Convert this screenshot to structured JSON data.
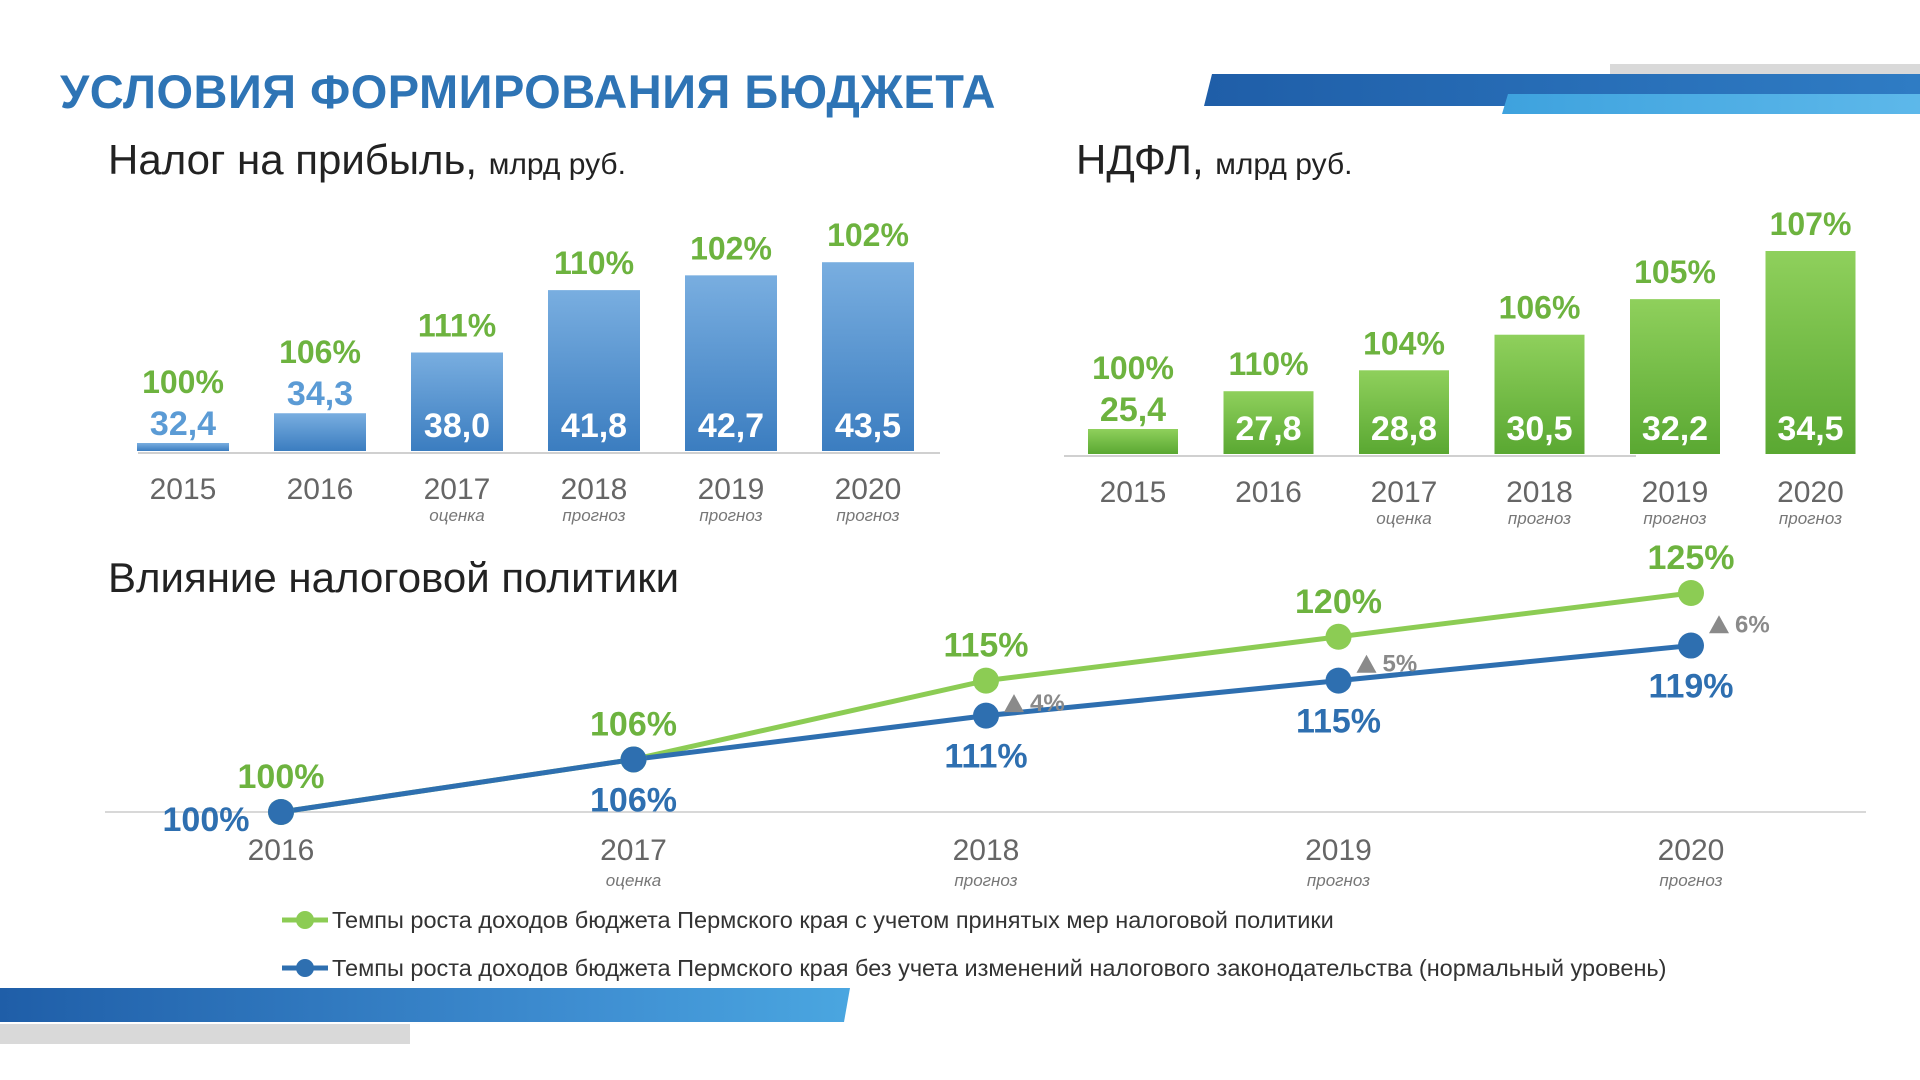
{
  "page": {
    "title": "УСЛОВИЯ ФОРМИРОВАНИЯ БЮДЖЕТА",
    "colors": {
      "title": "#2e74b5",
      "blue": "#2e6fb0",
      "green": "#7dc142",
      "label_green": "#6db33f",
      "label_blue": "#2e6fb0",
      "gray_text": "#666666"
    }
  },
  "profit_tax": {
    "title": "Налог на прибыль,",
    "unit": "млрд руб."
  },
  "ndfl": {
    "title": "НДФЛ,",
    "unit": "млрд руб."
  },
  "policy": {
    "title": "Влияние налоговой политики"
  },
  "legend": {
    "green": "Темпы роста доходов бюджета Пермского края с учетом принятых мер налоговой политики",
    "blue": "Темпы роста доходов бюджета Пермского края без учета изменений налогового законодательства (нормальный уровень)"
  },
  "chart_data": [
    {
      "type": "bar",
      "name": "profit_tax",
      "title": "Налог на прибыль, млрд руб.",
      "categories": [
        "2015",
        "2016",
        "2017",
        "2018",
        "2019",
        "2020"
      ],
      "sublabels": [
        "",
        "",
        "оценка",
        "прогноз",
        "прогноз",
        "прогноз"
      ],
      "values": [
        32.4,
        34.3,
        38.0,
        41.8,
        42.7,
        43.5
      ],
      "value_labels": [
        "32,4",
        "34,3",
        "38,0",
        "41,8",
        "42,7",
        "43,5"
      ],
      "growth_labels": [
        "100%",
        "106%",
        "111%",
        "110%",
        "102%",
        "102%"
      ],
      "ylim": [
        32,
        44
      ],
      "color": "#3f86c8"
    },
    {
      "type": "bar",
      "name": "ndfl",
      "title": "НДФЛ, млрд руб.",
      "categories": [
        "2015",
        "2016",
        "2017",
        "2018",
        "2019",
        "2020"
      ],
      "sublabels": [
        "",
        "",
        "оценка",
        "прогноз",
        "прогноз",
        "прогноз"
      ],
      "values": [
        25.4,
        27.8,
        28.8,
        30.5,
        32.2,
        34.5
      ],
      "value_labels": [
        "25,4",
        "27,8",
        "28,8",
        "30,5",
        "32,2",
        "34,5"
      ],
      "growth_labels": [
        "100%",
        "110%",
        "104%",
        "106%",
        "105%",
        "107%"
      ],
      "ylim": [
        24.8,
        34.5
      ],
      "color": "#6cb83a"
    },
    {
      "type": "line",
      "name": "policy",
      "title": "Влияние налоговой политики",
      "categories": [
        "2016",
        "2017",
        "2018",
        "2019",
        "2020"
      ],
      "sublabels": [
        "",
        "оценка",
        "прогноз",
        "прогноз",
        "прогноз"
      ],
      "ylim": [
        100,
        125
      ],
      "series": [
        {
          "name": "Темпы роста доходов бюджета Пермского края с учетом принятых мер налоговой политики",
          "values": [
            100,
            106,
            115,
            120,
            125
          ],
          "labels": [
            "100%",
            "106%",
            "115%",
            "120%",
            "125%"
          ],
          "color": "#8ccc54"
        },
        {
          "name": "Темпы роста доходов бюджета Пермского края без учета изменений налогового законодательства (нормальный уровень)",
          "values": [
            100,
            106,
            111,
            115,
            119
          ],
          "labels": [
            "100%",
            "106%",
            "111%",
            "115%",
            "119%"
          ],
          "color": "#2e6fb0"
        }
      ],
      "delta_labels": [
        "",
        "",
        "4%",
        "5%",
        "6%"
      ]
    }
  ]
}
